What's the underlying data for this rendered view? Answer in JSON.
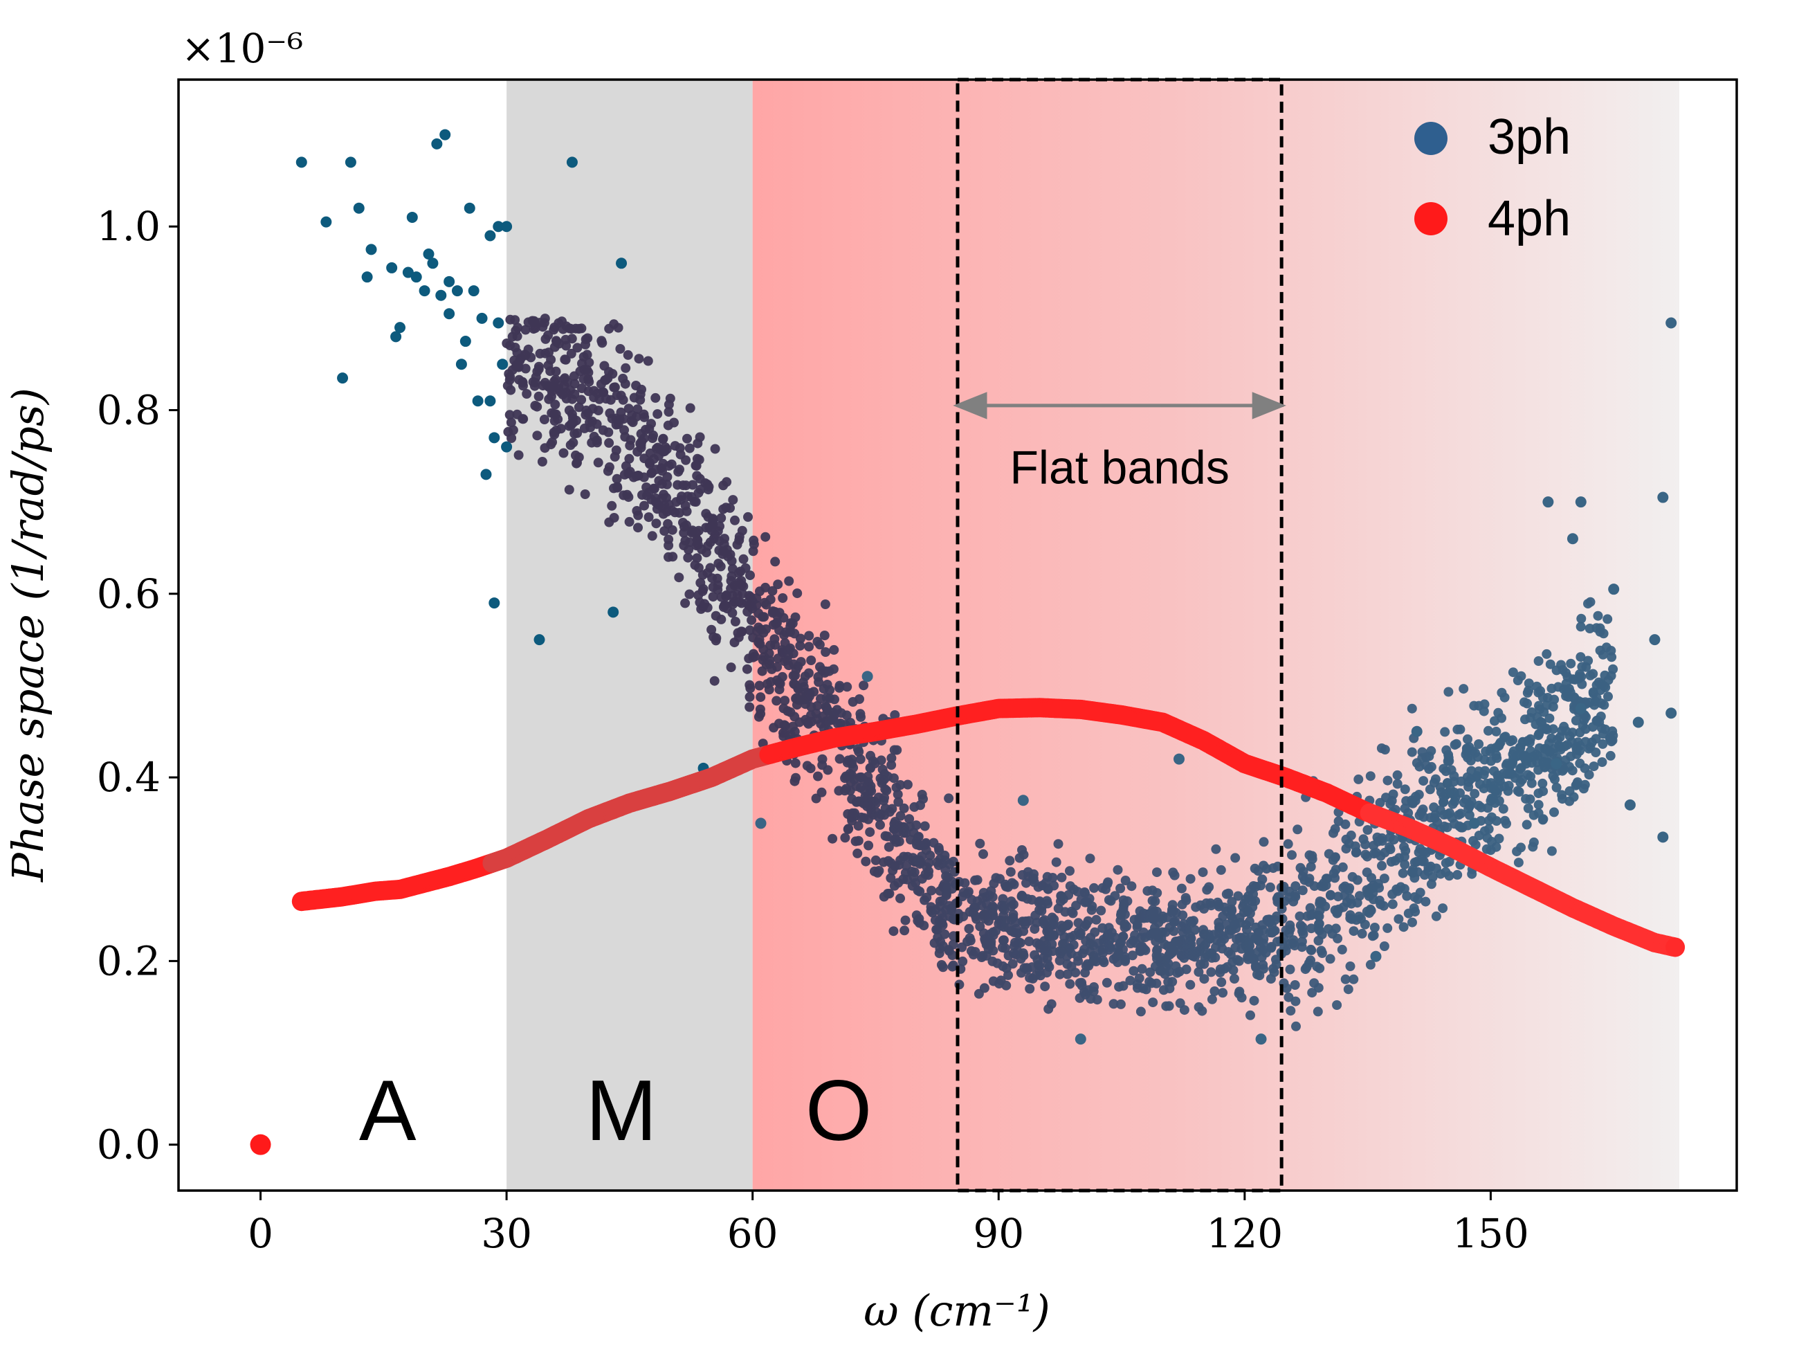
{
  "chart_data": {
    "type": "scatter",
    "xlabel": "ω (cm⁻¹)",
    "ylabel": "Phase space (1/rad/ps)",
    "y_multiplier": "×10⁻⁶",
    "xlim": [
      -10,
      180
    ],
    "ylim": [
      -0.05,
      1.16
    ],
    "xticks": [
      0,
      30,
      60,
      90,
      120,
      150
    ],
    "yticks": [
      0.0,
      0.2,
      0.4,
      0.6,
      0.8,
      1.0
    ],
    "xtick_labels": [
      "0",
      "30",
      "60",
      "90",
      "120",
      "150"
    ],
    "ytick_labels": [
      "0.0",
      "0.2",
      "0.4",
      "0.6",
      "0.8",
      "1.0"
    ],
    "regions": [
      {
        "label": "A",
        "x_range": [
          0,
          30
        ],
        "style": "none"
      },
      {
        "label": "M",
        "x_range": [
          30,
          60
        ],
        "style": "gray"
      },
      {
        "label": "O",
        "x_range": [
          60,
          173
        ],
        "style": "red-gradient"
      }
    ],
    "flat_bands": {
      "label": "Flat bands",
      "x_range": [
        85,
        124.5
      ]
    },
    "legend": {
      "position": "top-right",
      "entries": [
        "3ph",
        "4ph"
      ]
    },
    "series": [
      {
        "name": "3ph",
        "color": "#2f5f8f",
        "note": "dense cloud; representative sample of points",
        "points": [
          [
            5,
            1.07
          ],
          [
            8,
            1.005
          ],
          [
            10,
            0.835
          ],
          [
            11,
            1.07
          ],
          [
            12,
            1.02
          ],
          [
            13,
            0.945
          ],
          [
            13.5,
            0.975
          ],
          [
            16,
            0.955
          ],
          [
            16.5,
            0.88
          ],
          [
            17,
            0.89
          ],
          [
            18,
            0.95
          ],
          [
            18.5,
            1.01
          ],
          [
            19,
            0.945
          ],
          [
            20,
            0.93
          ],
          [
            20.5,
            0.97
          ],
          [
            21,
            0.96
          ],
          [
            21.5,
            1.09
          ],
          [
            22,
            0.925
          ],
          [
            22.5,
            1.1
          ],
          [
            23,
            0.94
          ],
          [
            23,
            0.905
          ],
          [
            24,
            0.93
          ],
          [
            24.5,
            0.85
          ],
          [
            25,
            0.875
          ],
          [
            25.5,
            1.02
          ],
          [
            26,
            0.93
          ],
          [
            26.5,
            0.81
          ],
          [
            27,
            0.9
          ],
          [
            27.5,
            0.73
          ],
          [
            28,
            0.81
          ],
          [
            28,
            0.99
          ],
          [
            28.5,
            0.77
          ],
          [
            28.5,
            0.59
          ],
          [
            29,
            0.895
          ],
          [
            29,
            1.0
          ],
          [
            29.5,
            0.85
          ],
          [
            30,
            0.76
          ],
          [
            30,
            1.0
          ],
          [
            38,
            1.07
          ],
          [
            44,
            0.96
          ],
          [
            34,
            0.55
          ],
          [
            43,
            0.58
          ],
          [
            54,
            0.41
          ],
          [
            61,
            0.35
          ],
          [
            74,
            0.51
          ],
          [
            93,
            0.375
          ],
          [
            112,
            0.42
          ],
          [
            100,
            0.115
          ],
          [
            122,
            0.115
          ],
          [
            136,
            0.205
          ],
          [
            141,
            0.45
          ],
          [
            148,
            0.35
          ],
          [
            157,
            0.7
          ],
          [
            160,
            0.66
          ],
          [
            161,
            0.7
          ],
          [
            171,
            0.705
          ],
          [
            171,
            0.335
          ],
          [
            172,
            0.895
          ],
          [
            172,
            0.47
          ],
          [
            170,
            0.55
          ],
          [
            168,
            0.46
          ],
          [
            167,
            0.37
          ],
          [
            165,
            0.605
          ],
          [
            161,
            0.475
          ],
          [
            158,
            0.415
          ]
        ]
      },
      {
        "name": "4ph",
        "color": "#ff2a2a",
        "note": "smooth curve sampled at intervals",
        "points": [
          [
            0,
            0.0
          ],
          [
            5,
            0.265
          ],
          [
            8,
            0.268
          ],
          [
            10,
            0.27
          ],
          [
            12,
            0.273
          ],
          [
            14,
            0.276
          ],
          [
            17,
            0.278
          ],
          [
            20,
            0.285
          ],
          [
            23,
            0.292
          ],
          [
            26,
            0.3
          ],
          [
            30,
            0.312
          ],
          [
            35,
            0.333
          ],
          [
            40,
            0.355
          ],
          [
            45,
            0.372
          ],
          [
            50,
            0.385
          ],
          [
            55,
            0.4
          ],
          [
            60,
            0.42
          ],
          [
            65,
            0.432
          ],
          [
            70,
            0.443
          ],
          [
            75,
            0.45
          ],
          [
            80,
            0.458
          ],
          [
            85,
            0.467
          ],
          [
            90,
            0.475
          ],
          [
            95,
            0.476
          ],
          [
            100,
            0.474
          ],
          [
            105,
            0.468
          ],
          [
            110,
            0.46
          ],
          [
            115,
            0.44
          ],
          [
            120,
            0.415
          ],
          [
            125,
            0.4
          ],
          [
            130,
            0.383
          ],
          [
            135,
            0.362
          ],
          [
            140,
            0.345
          ],
          [
            145,
            0.325
          ],
          [
            150,
            0.302
          ],
          [
            155,
            0.28
          ],
          [
            160,
            0.258
          ],
          [
            165,
            0.238
          ],
          [
            170,
            0.22
          ],
          [
            172.5,
            0.215
          ]
        ]
      }
    ]
  }
}
